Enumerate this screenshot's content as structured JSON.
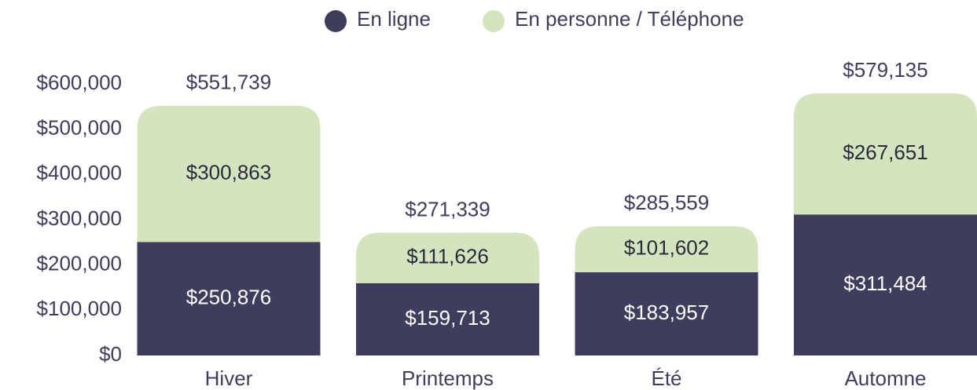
{
  "chart_data": {
    "type": "stacked_bar",
    "categories": [
      "Hiver",
      "Printemps",
      "Été",
      "Automne"
    ],
    "series": [
      {
        "name": "En ligne",
        "color": "#3f3d5e",
        "values": [
          250876,
          159713,
          183957,
          311484
        ],
        "value_labels": [
          "$250,876",
          "$159,713",
          "$183,957",
          "$311,484"
        ],
        "label_color": "#ffffff"
      },
      {
        "name": "En personne / Téléphone",
        "color": "#d4e4bc",
        "values": [
          300863,
          111626,
          101602,
          267651
        ],
        "value_labels": [
          "$300,863",
          "$111,626",
          "$101,602",
          "$267,651"
        ],
        "label_color": "#2b2a40"
      }
    ],
    "totals": {
      "values": [
        551739,
        271339,
        285559,
        579135
      ],
      "value_labels": [
        "$551,739",
        "$271,339",
        "$285,559",
        "$579,135"
      ]
    },
    "ylim": [
      0,
      600000
    ],
    "yticks": [
      {
        "value": 0,
        "label": "$0"
      },
      {
        "value": 100000,
        "label": "$100,000"
      },
      {
        "value": 200000,
        "label": "$200,000"
      },
      {
        "value": 300000,
        "label": "$300,000"
      },
      {
        "value": 400000,
        "label": "$400,000"
      },
      {
        "value": 500000,
        "label": "$500,000"
      },
      {
        "value": 600000,
        "label": "$600,000"
      }
    ],
    "legend": "top"
  }
}
